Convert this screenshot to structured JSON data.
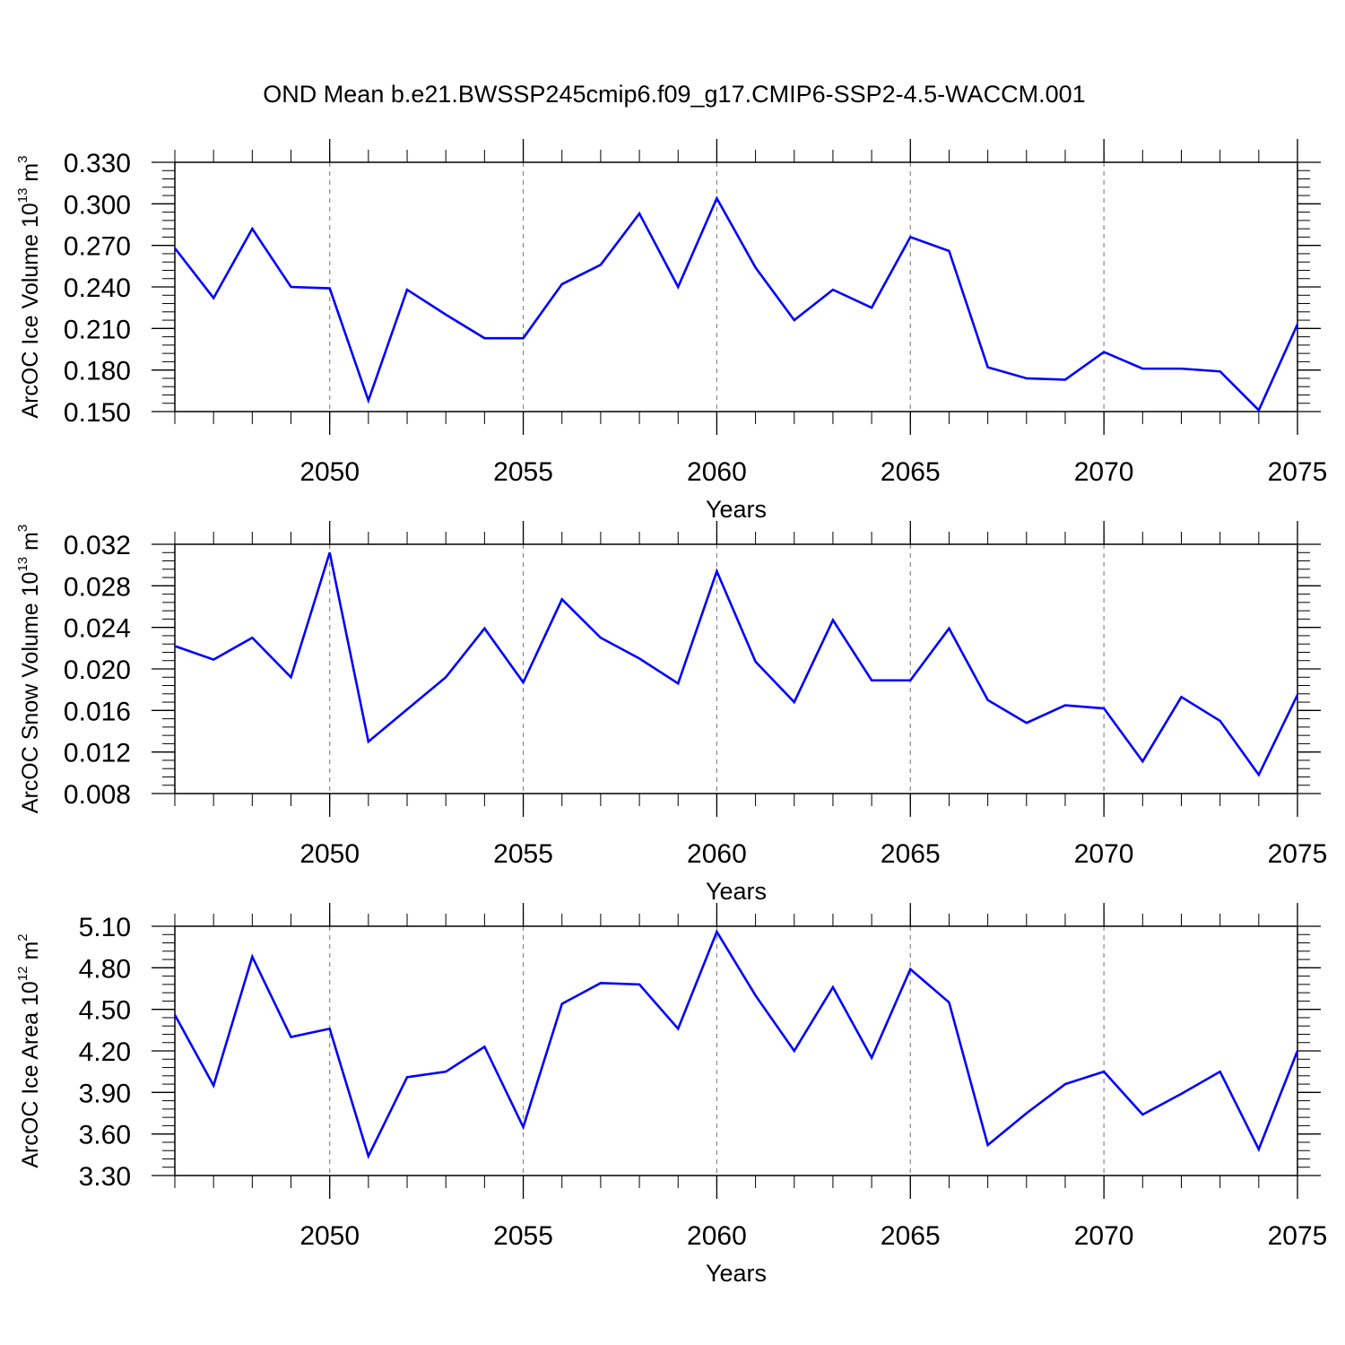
{
  "title": "OND Mean b.e21.BWSSP245cmip6.f09_g17.CMIP6-SSP2-4.5-WACCM.001",
  "colors": {
    "line": "#0000ff",
    "axis": "#000000",
    "grid": "#888888"
  },
  "chart_data": [
    {
      "type": "line",
      "ylabel": {
        "text": "ArcOC Ice Volume 10",
        "exp": "13",
        "unit": " m",
        "unit_exp": "3"
      },
      "xlabel": "Years",
      "xlim": [
        2046,
        2075
      ],
      "ylim": [
        0.15,
        0.33
      ],
      "yticks": [
        0.15,
        0.18,
        0.21,
        0.24,
        0.27,
        0.3,
        0.33
      ],
      "ytick_labels": [
        "0.150",
        "0.180",
        "0.210",
        "0.240",
        "0.270",
        "0.300",
        "0.330"
      ],
      "yminor_step": 0.006,
      "xticks": [
        2050,
        2055,
        2060,
        2065,
        2070,
        2075
      ],
      "xtick_labels": [
        "2050",
        "2055",
        "2060",
        "2065",
        "2070",
        "2075"
      ],
      "grid": "vertical dashed at major x ticks",
      "x": [
        2046,
        2047,
        2048,
        2049,
        2050,
        2051,
        2052,
        2053,
        2054,
        2055,
        2056,
        2057,
        2058,
        2059,
        2060,
        2061,
        2062,
        2063,
        2064,
        2065,
        2066,
        2067,
        2068,
        2069,
        2070,
        2071,
        2072,
        2073,
        2074,
        2075
      ],
      "values": [
        0.268,
        0.232,
        0.282,
        0.24,
        0.239,
        0.158,
        0.238,
        0.22,
        0.203,
        0.203,
        0.242,
        0.256,
        0.293,
        0.24,
        0.304,
        0.254,
        0.216,
        0.238,
        0.225,
        0.276,
        0.266,
        0.182,
        0.174,
        0.173,
        0.193,
        0.181,
        0.181,
        0.179,
        0.151,
        0.213
      ]
    },
    {
      "type": "line",
      "ylabel": {
        "text": "ArcOC Snow Volume 10",
        "exp": "13",
        "unit": " m",
        "unit_exp": "3"
      },
      "xlabel": "Years",
      "xlim": [
        2046,
        2075
      ],
      "ylim": [
        0.008,
        0.032
      ],
      "yticks": [
        0.008,
        0.012,
        0.016,
        0.02,
        0.024,
        0.028,
        0.032
      ],
      "ytick_labels": [
        "0.008",
        "0.012",
        "0.016",
        "0.020",
        "0.024",
        "0.028",
        "0.032"
      ],
      "yminor_step": 0.0008,
      "xticks": [
        2050,
        2055,
        2060,
        2065,
        2070,
        2075
      ],
      "xtick_labels": [
        "2050",
        "2055",
        "2060",
        "2065",
        "2070",
        "2075"
      ],
      "grid": "vertical dashed at major x ticks",
      "x": [
        2046,
        2047,
        2048,
        2049,
        2050,
        2051,
        2052,
        2053,
        2054,
        2055,
        2056,
        2057,
        2058,
        2059,
        2060,
        2061,
        2062,
        2063,
        2064,
        2065,
        2066,
        2067,
        2068,
        2069,
        2070,
        2071,
        2072,
        2073,
        2074,
        2075
      ],
      "values": [
        0.0222,
        0.0209,
        0.023,
        0.0192,
        0.0312,
        0.013,
        0.0161,
        0.0192,
        0.0239,
        0.0187,
        0.0267,
        0.023,
        0.021,
        0.0186,
        0.0294,
        0.0207,
        0.0168,
        0.0247,
        0.0189,
        0.0189,
        0.0239,
        0.017,
        0.0148,
        0.0165,
        0.0162,
        0.0111,
        0.0173,
        0.015,
        0.0098,
        0.0175
      ]
    },
    {
      "type": "line",
      "ylabel": {
        "text": "ArcOC Ice Area 10",
        "exp": "12",
        "unit": " m",
        "unit_exp": "2"
      },
      "xlabel": "Years",
      "xlim": [
        2046,
        2075
      ],
      "ylim": [
        3.3,
        5.1
      ],
      "yticks": [
        3.3,
        3.6,
        3.9,
        4.2,
        4.5,
        4.8,
        5.1
      ],
      "ytick_labels": [
        "3.30",
        "3.60",
        "3.90",
        "4.20",
        "4.50",
        "4.80",
        "5.10"
      ],
      "yminor_step": 0.06,
      "xticks": [
        2050,
        2055,
        2060,
        2065,
        2070,
        2075
      ],
      "xtick_labels": [
        "2050",
        "2055",
        "2060",
        "2065",
        "2070",
        "2075"
      ],
      "grid": "vertical dashed at major x ticks",
      "x": [
        2046,
        2047,
        2048,
        2049,
        2050,
        2051,
        2052,
        2053,
        2054,
        2055,
        2056,
        2057,
        2058,
        2059,
        2060,
        2061,
        2062,
        2063,
        2064,
        2065,
        2066,
        2067,
        2068,
        2069,
        2070,
        2071,
        2072,
        2073,
        2074,
        2075
      ],
      "values": [
        4.46,
        3.95,
        4.88,
        4.3,
        4.36,
        3.44,
        4.01,
        4.05,
        4.23,
        3.65,
        4.54,
        4.69,
        4.68,
        4.36,
        5.06,
        4.6,
        4.2,
        4.66,
        4.15,
        4.79,
        4.55,
        3.52,
        3.75,
        3.96,
        4.05,
        3.74,
        3.89,
        4.05,
        3.49,
        4.2
      ]
    }
  ]
}
